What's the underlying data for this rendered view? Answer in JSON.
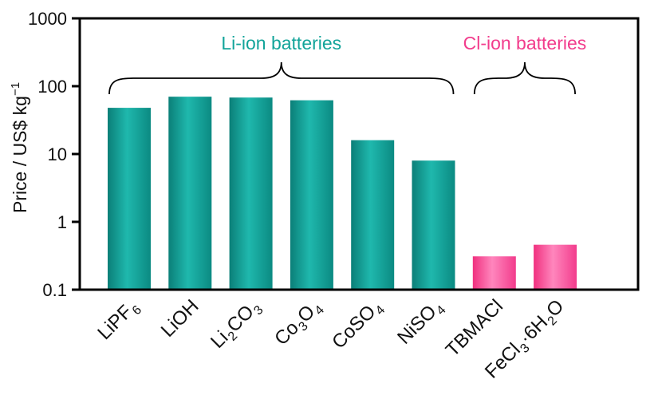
{
  "chart_data": {
    "type": "bar",
    "ylabel_main": "Price / US$ kg",
    "ylabel_sup": "−1",
    "yscale": "log",
    "ylim": [
      0.1,
      1000
    ],
    "yticks": [
      "0.1",
      "1",
      "10",
      "100",
      "1000"
    ],
    "ytick_values": [
      0.1,
      1,
      10,
      100,
      1000
    ],
    "categories": [
      {
        "parts": [
          {
            "t": "LiPF"
          },
          {
            "t": "6",
            "s": "sub"
          }
        ]
      },
      {
        "parts": [
          {
            "t": "LiOH"
          }
        ]
      },
      {
        "parts": [
          {
            "t": "Li"
          },
          {
            "t": "2",
            "s": "sub"
          },
          {
            "t": "CO"
          },
          {
            "t": "3",
            "s": "sub"
          }
        ]
      },
      {
        "parts": [
          {
            "t": "Co"
          },
          {
            "t": "3",
            "s": "sub"
          },
          {
            "t": "O"
          },
          {
            "t": "4",
            "s": "sub"
          }
        ]
      },
      {
        "parts": [
          {
            "t": "CoSO"
          },
          {
            "t": "4",
            "s": "sub"
          }
        ]
      },
      {
        "parts": [
          {
            "t": "NiSO"
          },
          {
            "t": "4",
            "s": "sub"
          }
        ]
      },
      {
        "parts": [
          {
            "t": "TBMACl"
          }
        ]
      },
      {
        "parts": [
          {
            "t": "FeCl"
          },
          {
            "t": "3",
            "s": "sub"
          },
          {
            "t": "·6H"
          },
          {
            "t": "2",
            "s": "sub"
          },
          {
            "t": "O"
          }
        ]
      }
    ],
    "values": [
      48,
      70,
      68,
      62,
      16,
      8,
      0.31,
      0.46
    ],
    "groups": [
      {
        "label": "Li-ion batteries",
        "color": "#13a49a",
        "from": 0,
        "to": 5
      },
      {
        "label": "Cl-ion batteries",
        "color": "#f23c8c",
        "from": 6,
        "to": 7
      }
    ],
    "grid": false,
    "legend": "none"
  }
}
